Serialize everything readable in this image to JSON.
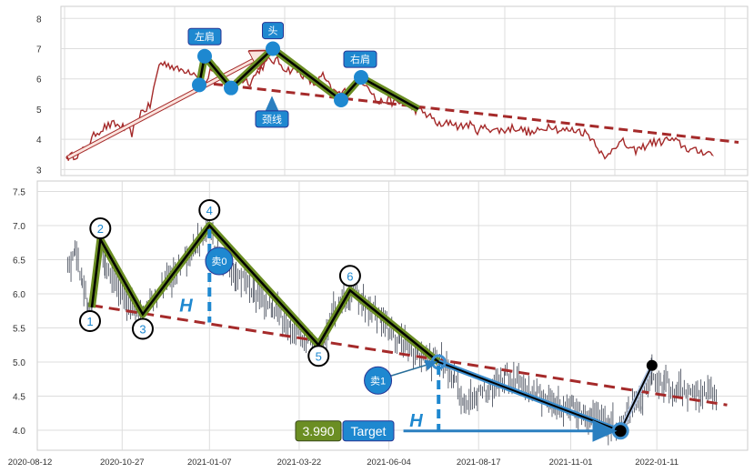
{
  "chart_data": [
    {
      "type": "line",
      "panel": "top",
      "ylim": [
        2.8,
        8.4
      ],
      "yticks": [
        3,
        4,
        5,
        6,
        7,
        8
      ],
      "grid": true,
      "price_color": "#a52a2a",
      "price_values": [
        3.4,
        3.5,
        3.7,
        4.2,
        4.4,
        4.5,
        4.4,
        4.2,
        4.9,
        5.1,
        6.5,
        6.5,
        6.3,
        6.3,
        6.2,
        5.8,
        6.5,
        6.0,
        5.8,
        6.0,
        5.9,
        6.3,
        6.6,
        6.6,
        6.3,
        6.3,
        6.1,
        5.8,
        6.1,
        5.6,
        5.5,
        5.7,
        6.0,
        5.8,
        5.2,
        5.3,
        5.2,
        5.2,
        5.0,
        4.9,
        4.7,
        4.4,
        4.6,
        4.4,
        4.5,
        4.3,
        4.4,
        4.3,
        4.3,
        4.4,
        4.3,
        4.2,
        4.3,
        4.5,
        4.3,
        4.3,
        4.3,
        4.2,
        3.9,
        3.3,
        3.8,
        3.9,
        3.6,
        3.7,
        3.9,
        3.9,
        4.0,
        3.9,
        3.7,
        3.6,
        3.6,
        3.5
      ],
      "pattern_points": [
        [
          14.4,
          5.8
        ],
        [
          15,
          6.75
        ],
        [
          17.9,
          5.7
        ],
        [
          22.5,
          7.0
        ],
        [
          30,
          5.3
        ],
        [
          32.2,
          6.05
        ],
        [
          38.5,
          5.0
        ]
      ],
      "pattern_markers": [
        [
          14.4,
          5.8
        ],
        [
          15,
          6.75
        ],
        [
          17.9,
          5.7
        ],
        [
          22.5,
          7.0
        ],
        [
          30,
          5.3
        ],
        [
          32.2,
          6.05
        ]
      ],
      "neckline": [
        [
          16,
          5.83
        ],
        [
          73.7,
          3.9
        ]
      ],
      "trend_arrow": [
        [
          0,
          3.4
        ],
        [
          22.5,
          6.95
        ]
      ],
      "annotations": [
        {
          "text": "左肩",
          "at": [
            15,
            7.4
          ]
        },
        {
          "text": "头",
          "at": [
            22.5,
            7.6
          ]
        },
        {
          "text": "右肩",
          "at": [
            32.1,
            6.65
          ]
        },
        {
          "text": "颈线",
          "at": [
            22.4,
            4.67
          ],
          "arrow_to": [
            22.4,
            5.5
          ]
        }
      ]
    },
    {
      "type": "ohlc",
      "panel": "bottom",
      "xlim": [
        "2020-08-18",
        "2022-03-27"
      ],
      "ylim": [
        3.7,
        7.65
      ],
      "yticks": [
        "4.0",
        "4.5",
        "5.0",
        "5.5",
        "6.0",
        "6.5",
        "7.0",
        "7.5"
      ],
      "xticks": [
        "2020-08-12",
        "2020-10-27",
        "2021-01-07",
        "2021-03-22",
        "2021-06-04",
        "2021-08-17",
        "2021-11-01",
        "2022-01-11"
      ],
      "grid": true,
      "close_path": [
        [
          "2020-09-12",
          6.4
        ],
        [
          "2020-09-18",
          6.6
        ],
        [
          "2020-09-24",
          6.2
        ],
        [
          "2020-09-29",
          5.8
        ],
        [
          "2020-10-02",
          5.8
        ],
        [
          "2020-10-07",
          6.7
        ],
        [
          "2020-10-13",
          6.5
        ],
        [
          "2020-10-20",
          6.2
        ],
        [
          "2020-10-31",
          5.9
        ],
        [
          "2020-11-12",
          5.7
        ],
        [
          "2020-11-19",
          5.9
        ],
        [
          "2020-11-30",
          6.1
        ],
        [
          "2020-12-15",
          6.4
        ],
        [
          "2020-12-27",
          6.7
        ],
        [
          "2021-01-07",
          7.0
        ],
        [
          "2021-01-14",
          6.5
        ],
        [
          "2021-01-29",
          6.3
        ],
        [
          "2021-02-13",
          6.0
        ],
        [
          "2021-02-28",
          5.8
        ],
        [
          "2021-03-15",
          5.5
        ],
        [
          "2021-03-30",
          5.3
        ],
        [
          "2021-04-08",
          5.2
        ],
        [
          "2021-04-18",
          5.7
        ],
        [
          "2021-05-03",
          6.05
        ],
        [
          "2021-05-14",
          5.9
        ],
        [
          "2021-05-29",
          5.6
        ],
        [
          "2021-06-13",
          5.3
        ],
        [
          "2021-06-28",
          5.1
        ],
        [
          "2021-07-16",
          5.0
        ],
        [
          "2021-07-28",
          4.8
        ],
        [
          "2021-08-05",
          4.4
        ],
        [
          "2021-08-16",
          4.5
        ],
        [
          "2021-08-27",
          4.6
        ],
        [
          "2021-09-08",
          4.8
        ],
        [
          "2021-09-19",
          4.7
        ],
        [
          "2021-10-04",
          4.5
        ],
        [
          "2021-10-19",
          4.4
        ],
        [
          "2021-11-03",
          4.35
        ],
        [
          "2021-11-18",
          4.2
        ],
        [
          "2021-12-03",
          4.1
        ],
        [
          "2021-12-13",
          4.0
        ],
        [
          "2021-12-22",
          4.3
        ],
        [
          "2021-12-29",
          4.4
        ],
        [
          "2022-01-07",
          4.8
        ],
        [
          "2022-01-17",
          4.7
        ],
        [
          "2022-01-28",
          4.6
        ],
        [
          "2022-02-08",
          4.5
        ],
        [
          "2022-03-01",
          4.55
        ]
      ],
      "pattern_points": [
        [
          "2020-10-02",
          5.8
        ],
        [
          "2020-10-09",
          6.8
        ],
        [
          "2020-11-13",
          5.7
        ],
        [
          "2021-01-07",
          7.0
        ],
        [
          "2021-04-07",
          5.25
        ],
        [
          "2021-05-03",
          6.05
        ],
        [
          "2021-07-15",
          5.0
        ]
      ],
      "projection_points": [
        [
          "2021-07-15",
          5.0
        ],
        [
          "2021-12-12",
          3.99
        ]
      ],
      "breakout_points": [
        [
          "2021-12-12",
          3.99
        ],
        [
          "2022-01-07",
          4.95
        ]
      ],
      "point_labels": [
        "1",
        "2",
        "3",
        "4",
        "5",
        "6"
      ],
      "neckline": [
        [
          "2020-10-02",
          5.83
        ],
        [
          "2022-03-10",
          4.37
        ]
      ],
      "height_marks": [
        {
          "label": "H",
          "date": "2021-01-07",
          "from": 7.0,
          "to": 5.58
        },
        {
          "label": "H",
          "date": "2021-07-15",
          "from": 5.0,
          "to": 3.99
        }
      ],
      "sell_signals": [
        {
          "text": "卖0",
          "date": "2021-01-15",
          "value": 6.48
        },
        {
          "text": "卖1",
          "date": "2021-05-26",
          "value": 4.73,
          "arrow_to": [
            "2021-07-13",
            5.0
          ]
        }
      ],
      "target": {
        "value_label": "3.990",
        "label": "Target",
        "from": "2021-06-16",
        "to": "2021-12-07",
        "value": 3.99
      },
      "colors": {
        "pattern": "#6b8e23",
        "projection": "#3d8fcf",
        "neckline": "#a52a2a",
        "accent": "#1e88d0",
        "bars": "#3a4150"
      }
    }
  ]
}
